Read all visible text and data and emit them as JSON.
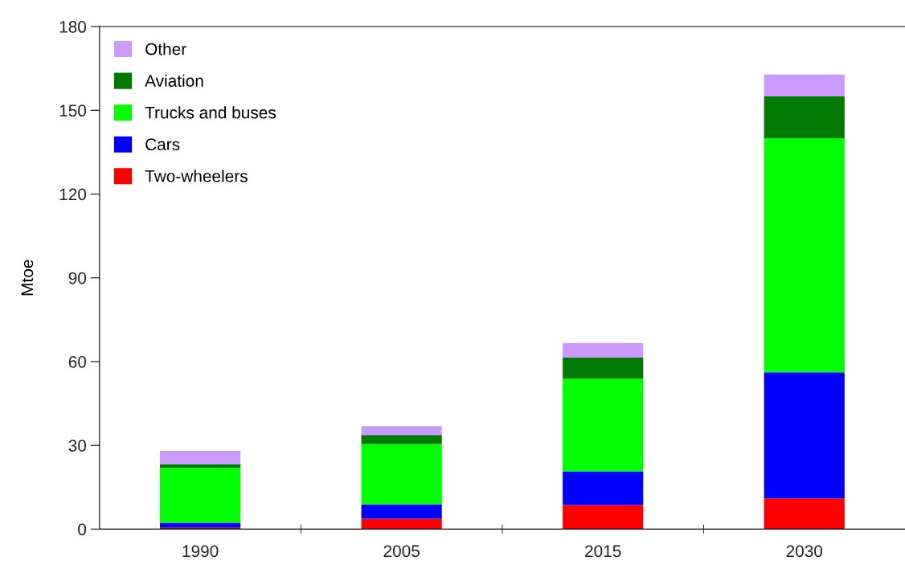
{
  "chart_data": {
    "type": "bar",
    "stacked": true,
    "ylabel": "Mtoe",
    "categories": [
      "1990",
      "2005",
      "2015",
      "2030"
    ],
    "series": [
      {
        "name": "Two-wheelers",
        "color": "#ff0000",
        "values": [
          0.5,
          3.7,
          8.6,
          11
        ]
      },
      {
        "name": "Cars",
        "color": "#0000ff",
        "values": [
          1.8,
          5.2,
          12.1,
          45.2
        ]
      },
      {
        "name": "Trucks and buses",
        "color": "#00ff00",
        "values": [
          19.6,
          21.6,
          33.2,
          83.8
        ]
      },
      {
        "name": "Aviation",
        "color": "#007a00",
        "values": [
          1.4,
          3.2,
          7.5,
          15
        ]
      },
      {
        "name": "Other",
        "color": "#cc99ff",
        "values": [
          4.7,
          3.2,
          5.2,
          7.8
        ]
      }
    ],
    "ylim": [
      0,
      180
    ],
    "yticks": [
      0,
      30,
      60,
      90,
      120,
      150,
      180
    ],
    "grid": false,
    "legend": "top left"
  }
}
